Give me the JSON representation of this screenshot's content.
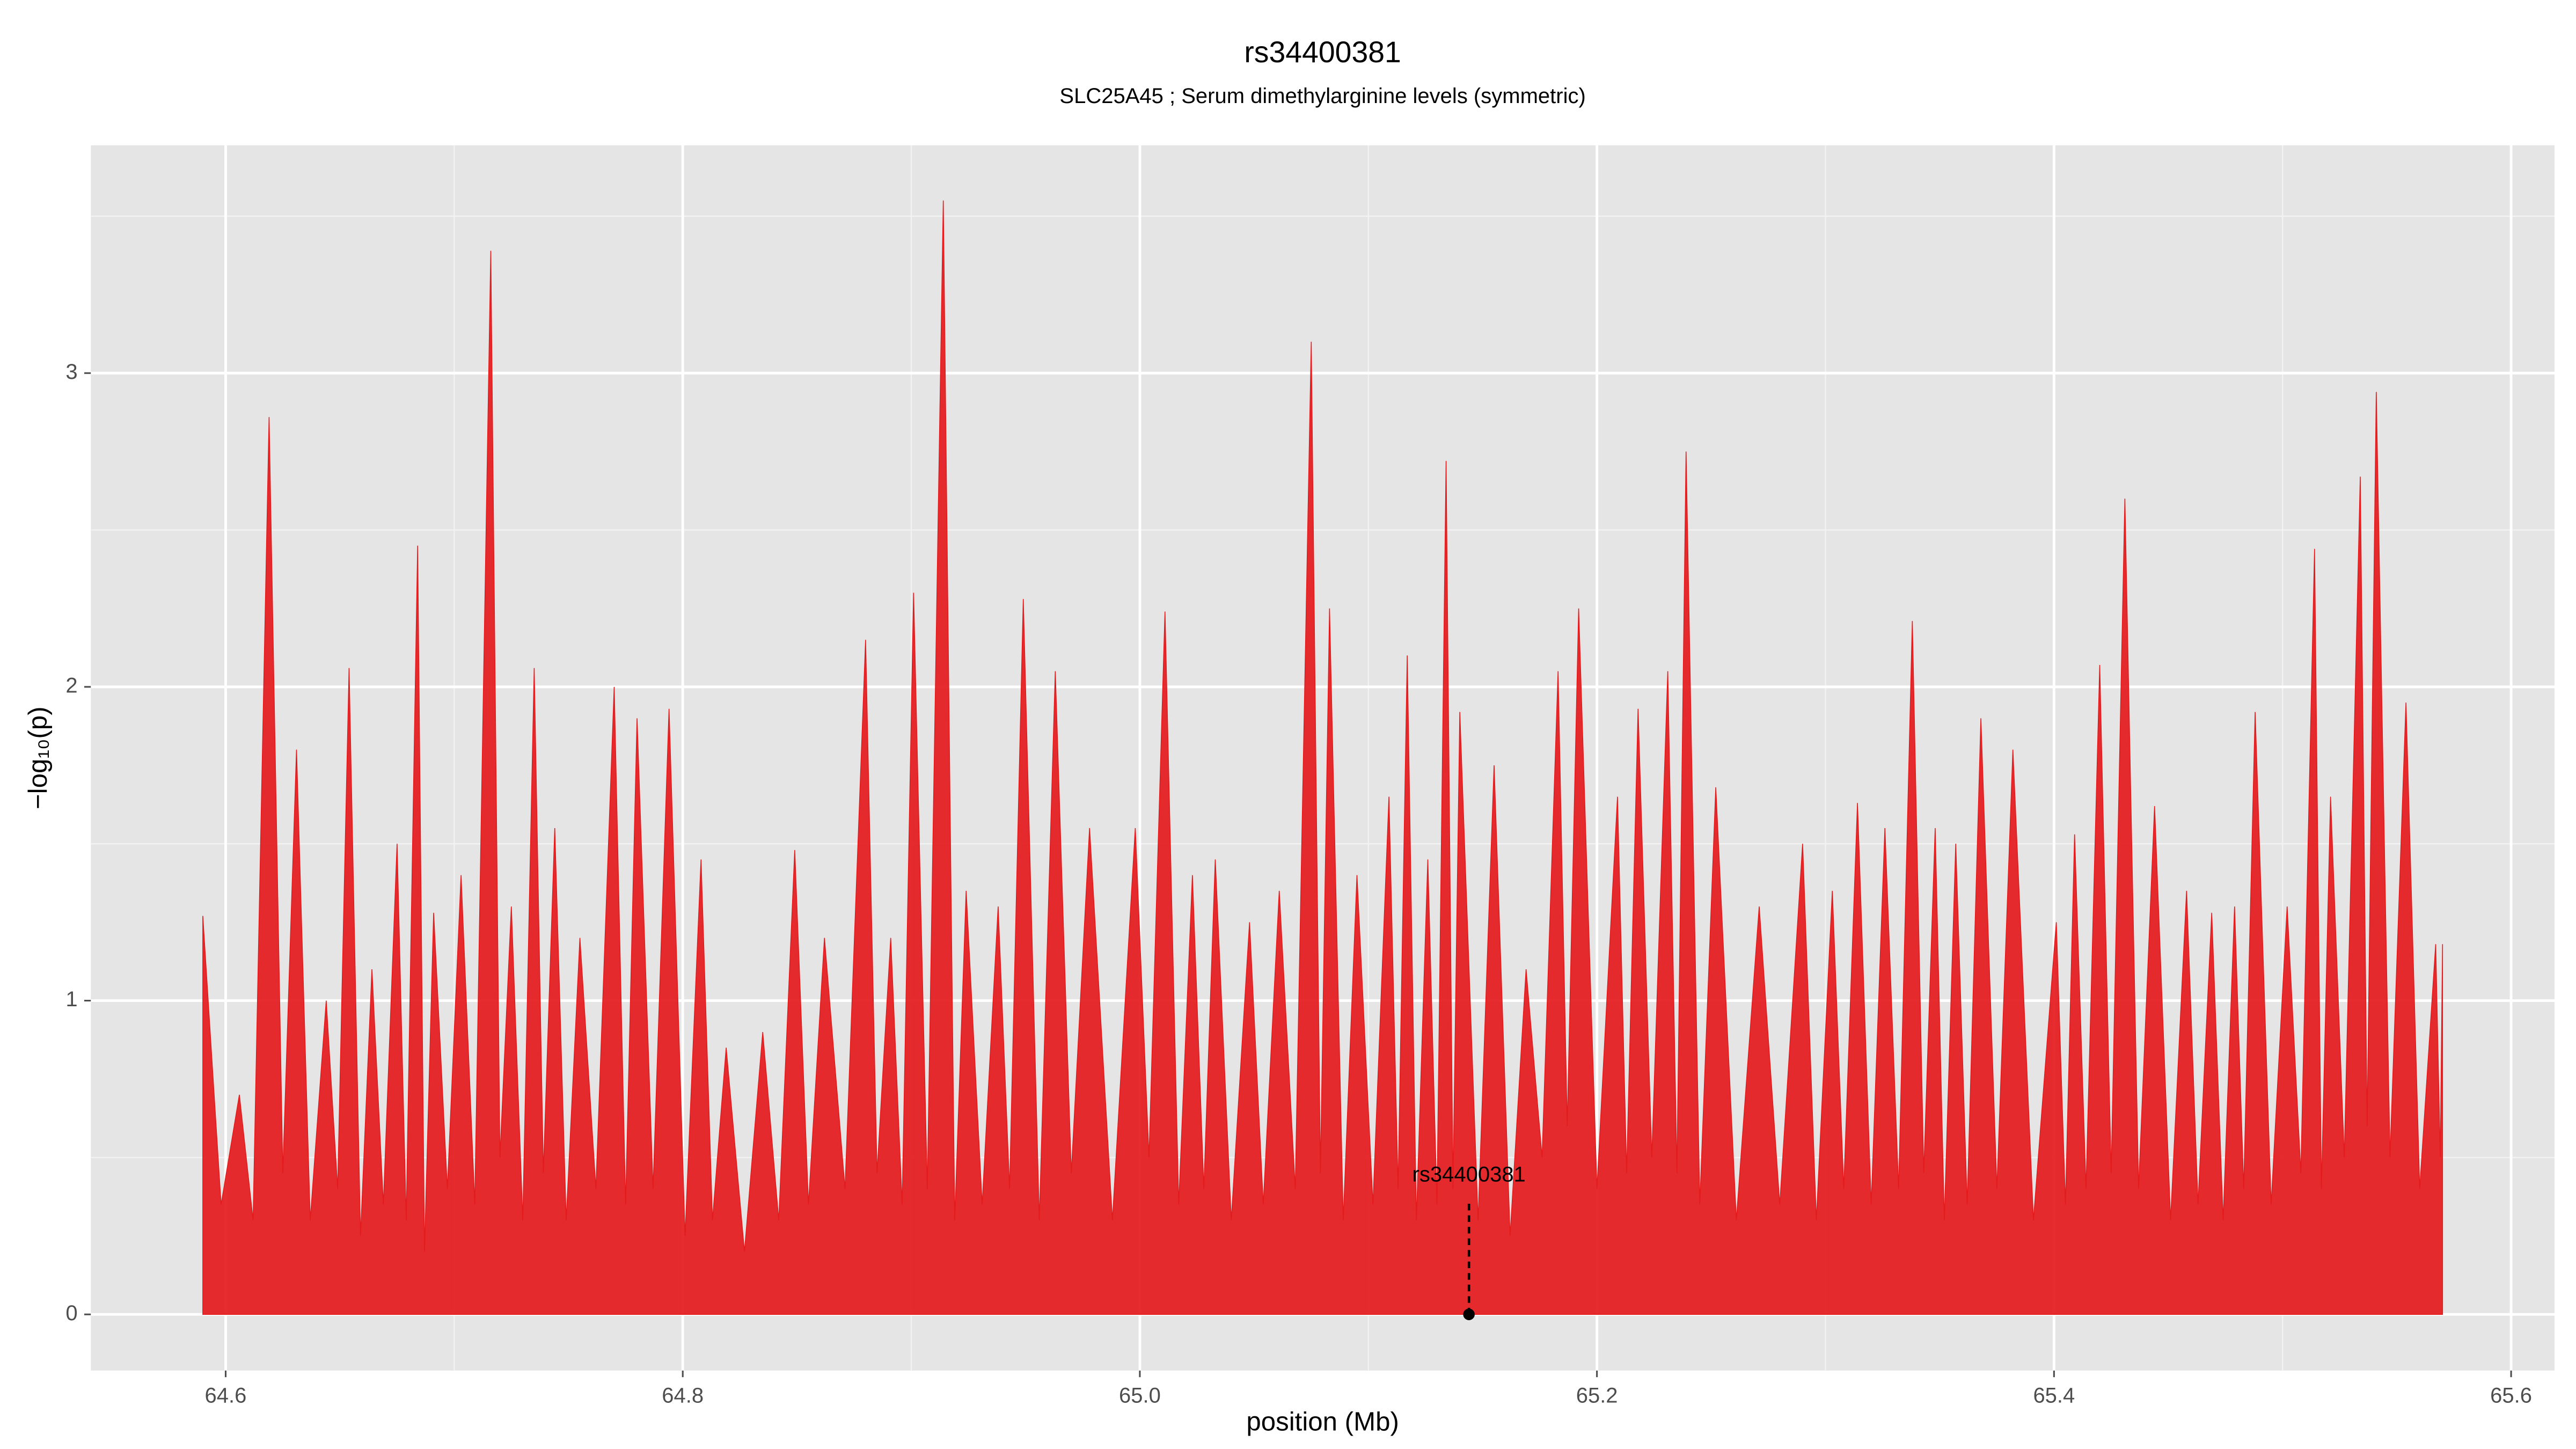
{
  "chart_data": {
    "type": "area",
    "title": "rs34400381",
    "subtitle": "SLC25A45 ; Serum dimethylarginine levels (symmetric)",
    "xlabel": "position (Mb)",
    "ylabel": "−log₁₀(p)",
    "xlim": [
      64.541,
      65.619
    ],
    "ylim": [
      -0.179,
      3.726
    ],
    "xticks": [
      64.6,
      64.8,
      {
        "value": 65,
        "label": "65.0"
      },
      65.2,
      65.4,
      65.6
    ],
    "yticks": [
      0,
      1,
      2,
      3
    ],
    "minor_xticks": [
      64.7,
      64.9,
      65.1,
      65.3,
      65.5
    ],
    "minor_yticks": [
      0.5,
      1.5,
      2.5,
      3.5
    ],
    "grid": true,
    "annotation": {
      "label": "rs34400381",
      "x": 65.144,
      "y": 0
    },
    "x": [
      64.59,
      64.598,
      64.606,
      64.612,
      64.619,
      64.625,
      64.631,
      64.637,
      64.644,
      64.649,
      64.654,
      64.659,
      64.664,
      64.669,
      64.675,
      64.679,
      64.684,
      64.687,
      64.691,
      64.697,
      64.703,
      64.709,
      64.716,
      64.72,
      64.725,
      64.73,
      64.735,
      64.739,
      64.744,
      64.749,
      64.755,
      64.762,
      64.77,
      64.775,
      64.78,
      64.787,
      64.794,
      64.801,
      64.808,
      64.813,
      64.819,
      64.827,
      64.835,
      64.842,
      64.849,
      64.855,
      64.862,
      64.871,
      64.88,
      64.885,
      64.891,
      64.896,
      64.901,
      64.907,
      64.914,
      64.919,
      64.924,
      64.931,
      64.938,
      64.943,
      64.949,
      64.956,
      64.963,
      64.97,
      64.978,
      64.988,
      64.998,
      65.004,
      65.011,
      65.017,
      65.023,
      65.028,
      65.033,
      65.04,
      65.048,
      65.054,
      65.061,
      65.068,
      65.075,
      65.079,
      65.083,
      65.089,
      65.095,
      65.102,
      65.109,
      65.113,
      65.117,
      65.121,
      65.126,
      65.13,
      65.134,
      65.137,
      65.14,
      65.148,
      65.155,
      65.162,
      65.169,
      65.176,
      65.183,
      65.187,
      65.192,
      65.2,
      65.209,
      65.213,
      65.218,
      65.224,
      65.231,
      65.235,
      65.239,
      65.245,
      65.252,
      65.261,
      65.271,
      65.28,
      65.29,
      65.296,
      65.303,
      65.308,
      65.314,
      65.32,
      65.326,
      65.332,
      65.338,
      65.343,
      65.348,
      65.352,
      65.357,
      65.362,
      65.368,
      65.375,
      65.382,
      65.391,
      65.401,
      65.405,
      65.409,
      65.414,
      65.42,
      65.425,
      65.431,
      65.437,
      65.444,
      65.451,
      65.458,
      65.463,
      65.469,
      65.474,
      65.479,
      65.483,
      65.488,
      65.495,
      65.502,
      65.508,
      65.514,
      65.517,
      65.521,
      65.527,
      65.534,
      65.537,
      65.541,
      65.547,
      65.554,
      65.56,
      65.567,
      65.569,
      65.57
    ],
    "series": [
      {
        "color": "#e41a1c",
        "values": [
          1.27,
          0.35,
          0.7,
          0.3,
          2.86,
          0.45,
          1.8,
          0.3,
          1.0,
          0.4,
          2.06,
          0.25,
          1.1,
          0.35,
          1.5,
          0.3,
          2.45,
          0.2,
          1.28,
          0.4,
          1.4,
          0.35,
          3.39,
          0.5,
          1.3,
          0.3,
          2.06,
          0.45,
          1.55,
          0.3,
          1.2,
          0.4,
          2.0,
          0.35,
          1.9,
          0.4,
          1.93,
          0.25,
          1.45,
          0.3,
          0.85,
          0.2,
          0.9,
          0.3,
          1.48,
          0.35,
          1.2,
          0.4,
          2.15,
          0.45,
          1.2,
          0.35,
          2.3,
          0.4,
          3.55,
          0.3,
          1.35,
          0.35,
          1.3,
          0.4,
          2.28,
          0.3,
          2.05,
          0.45,
          1.55,
          0.3,
          1.55,
          0.5,
          2.24,
          0.35,
          1.4,
          0.4,
          1.45,
          0.3,
          1.25,
          0.35,
          1.35,
          0.4,
          3.1,
          0.45,
          2.25,
          0.3,
          1.4,
          0.35,
          1.65,
          0.4,
          2.1,
          0.3,
          1.45,
          0.35,
          2.72,
          0.4,
          1.92,
          0.3,
          1.75,
          0.25,
          1.1,
          0.5,
          2.05,
          0.6,
          2.25,
          0.4,
          1.65,
          0.45,
          1.93,
          0.5,
          2.05,
          0.45,
          2.75,
          0.35,
          1.68,
          0.3,
          1.3,
          0.35,
          1.5,
          0.3,
          1.35,
          0.4,
          1.63,
          0.35,
          1.55,
          0.4,
          2.21,
          0.45,
          1.55,
          0.3,
          1.5,
          0.35,
          1.9,
          0.4,
          1.8,
          0.3,
          1.25,
          0.35,
          1.53,
          0.4,
          2.07,
          0.45,
          2.6,
          0.4,
          1.62,
          0.3,
          1.35,
          0.35,
          1.28,
          0.3,
          1.3,
          0.4,
          1.92,
          0.35,
          1.3,
          0.45,
          2.44,
          0.4,
          1.65,
          0.5,
          2.67,
          0.6,
          2.94,
          0.5,
          1.95,
          0.4,
          1.18,
          0.5,
          1.18
        ]
      }
    ]
  }
}
